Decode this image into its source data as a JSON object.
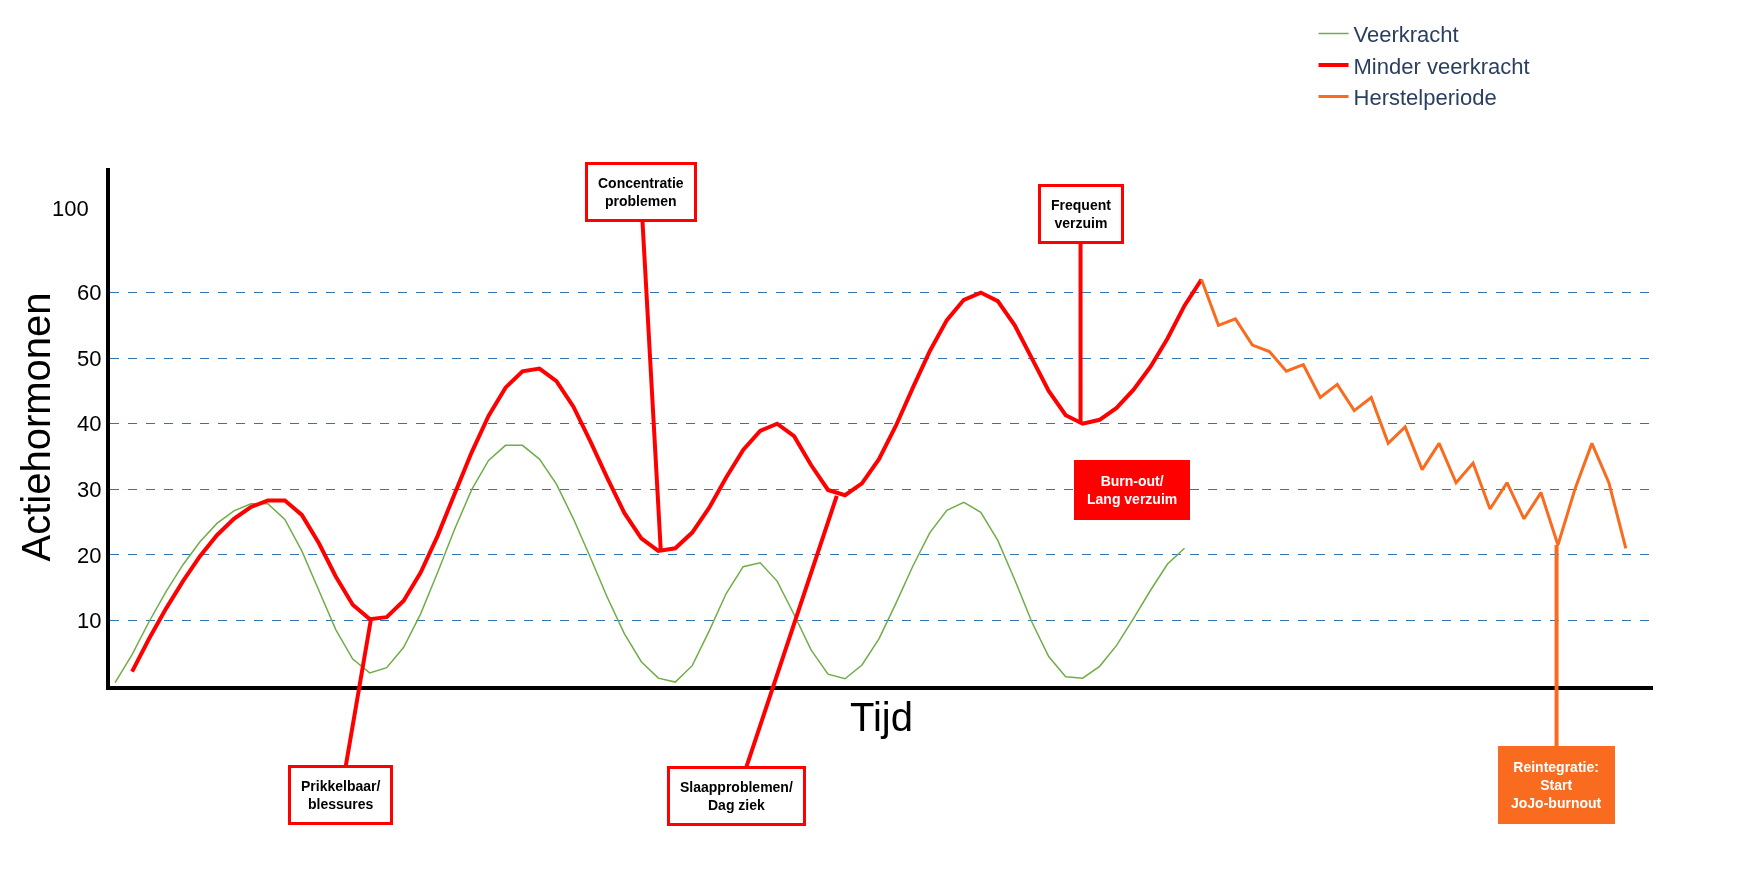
{
  "chart_data": {
    "type": "line",
    "xlabel": "Tijd",
    "ylabel": "Actiehormonen",
    "categories": [
      null,
      null,
      null,
      null,
      null,
      null,
      null,
      null,
      null,
      null,
      null,
      null,
      null,
      null,
      null,
      null,
      null,
      null,
      null,
      null,
      null,
      null,
      null,
      null,
      null,
      null,
      null,
      null,
      null,
      null,
      null,
      null,
      null,
      null,
      null,
      null,
      null,
      null,
      null,
      null,
      null,
      null,
      null,
      null,
      null,
      null,
      null,
      null,
      null,
      null,
      null,
      null,
      null,
      null,
      null,
      null,
      null,
      null,
      null,
      null,
      null,
      null,
      null,
      null,
      null,
      null,
      null,
      null,
      null,
      null,
      null,
      null,
      null,
      null,
      null,
      null,
      null,
      null,
      null,
      null,
      null,
      null,
      null,
      null,
      null,
      null,
      null,
      null,
      null,
      null,
      null
    ],
    "ylim": [
      0,
      79
    ],
    "yticks": [
      10,
      20,
      30,
      40,
      50,
      60
    ],
    "tick_labels": "y",
    "grid": "y",
    "legend": "top right",
    "marker": "none",
    "series": [
      {
        "name": "Veerkracht",
        "color": "#70ad47",
        "values": [
          0.5,
          4.8,
          9.8,
          14.4,
          18.5,
          22,
          24.8,
          26.7,
          27.8,
          27.8,
          25.4,
          20.6,
          14.6,
          8.6,
          4.1,
          2.0,
          2.8,
          5.9,
          11.0,
          17.3,
          23.9,
          29.9,
          34.4,
          36.7,
          36.7,
          34.6,
          30.8,
          25.5,
          19.6,
          13.5,
          8.0,
          3.7,
          1.2,
          0.6,
          3.1,
          8.4,
          14.1,
          18.2,
          18.8,
          16.0,
          10.9,
          5.5,
          1.8,
          1.1,
          3.2,
          7.2,
          12.6,
          18.3,
          23.4,
          26.8,
          28,
          26.5,
          22.2,
          16.2,
          9.8,
          4.5,
          1.4,
          1.2,
          3.0,
          6.2,
          10.3,
          14.6,
          18.6,
          21,
          null,
          null,
          null,
          null,
          null,
          null,
          null,
          null,
          null,
          null,
          null,
          null,
          null,
          null,
          null,
          null,
          null,
          null,
          null,
          null,
          null,
          null,
          null,
          null,
          null,
          null,
          null
        ]
      },
      {
        "name": "Minder veerkracht",
        "color": "#ff0000",
        "values": [
          null,
          2.2,
          7.2,
          11.8,
          16.0,
          19.8,
          23.0,
          25.5,
          27.3,
          28.3,
          28.3,
          26.1,
          21.8,
          16.7,
          12.4,
          10.2,
          10.5,
          13.0,
          17.3,
          22.9,
          29.3,
          35.6,
          41.2,
          45.5,
          48.0,
          48.4,
          46.5,
          42.6,
          37.3,
          31.7,
          26.4,
          22.5,
          20.6,
          21.0,
          23.4,
          27.2,
          31.8,
          36.0,
          38.9,
          40,
          38.1,
          33.7,
          29.9,
          29.1,
          30.9,
          34.6,
          39.7,
          45.5,
          51.1,
          55.8,
          58.9,
          60,
          58.7,
          55,
          50,
          45,
          41.3,
          40,
          40.6,
          42.4,
          45.2,
          48.7,
          53,
          58,
          62,
          null,
          null,
          null,
          null,
          null,
          null,
          null,
          null,
          null,
          null,
          null,
          null,
          null,
          null,
          null,
          null,
          null,
          null,
          null,
          null,
          null,
          null,
          null,
          null,
          null,
          null
        ]
      },
      {
        "name": "Herstelperiode",
        "color": "#f96b1f",
        "values": [
          null,
          null,
          null,
          null,
          null,
          null,
          null,
          null,
          null,
          null,
          null,
          null,
          null,
          null,
          null,
          null,
          null,
          null,
          null,
          null,
          null,
          null,
          null,
          null,
          null,
          null,
          null,
          null,
          null,
          null,
          null,
          null,
          null,
          null,
          null,
          null,
          null,
          null,
          null,
          null,
          null,
          null,
          null,
          null,
          null,
          null,
          null,
          null,
          null,
          null,
          null,
          null,
          null,
          null,
          null,
          null,
          null,
          null,
          null,
          null,
          null,
          null,
          null,
          null,
          62,
          55,
          56,
          52,
          51,
          48,
          49,
          44,
          46,
          42,
          44,
          37,
          39.5,
          33,
          37,
          31,
          34,
          27,
          31,
          25.5,
          29.5,
          21.5,
          30,
          37,
          31,
          21,
          null
        ]
      }
    ],
    "annotations": [
      "100",
      "Prikkelbaar/\nblessures",
      "Concentratie\nproblemen",
      "Slaapproblemen/\nDag ziek",
      "Frequent\nverzuim",
      "Burn-out/\nLang verzuim",
      "Reintegratie:\nStart\nJoJo-burnout"
    ]
  }
}
